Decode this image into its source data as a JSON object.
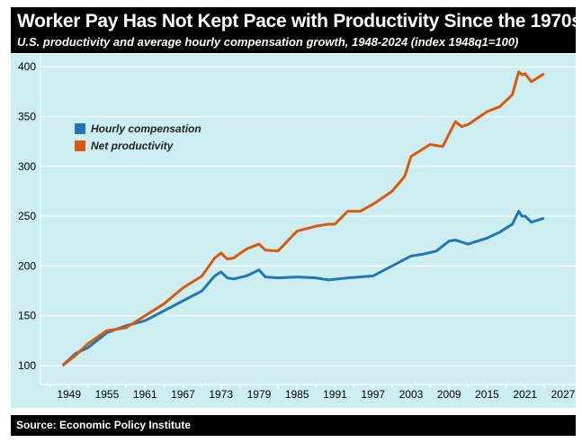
{
  "header": {
    "title": "Worker Pay Has Not Kept Pace with Productivity Since the 1970s",
    "subtitle": "U.S. productivity and average hourly compensation growth, 1948-2024 (index 1948q1=100)"
  },
  "footer": {
    "source": "Source: Economic Policy Institute"
  },
  "chart_data": {
    "type": "line",
    "title": "Worker Pay Has Not Kept Pace with Productivity Since the 1970s",
    "subtitle": "U.S. productivity and average hourly compensation growth, 1948-2024 (index 1948q1=100)",
    "xlim": [
      1944.5,
      2028
    ],
    "ylim": [
      80,
      405
    ],
    "xticks": [
      1949,
      1955,
      1961,
      1967,
      1973,
      1979,
      1985,
      1991,
      1997,
      2003,
      2009,
      2015,
      2021,
      2027
    ],
    "yticks": [
      100,
      150,
      200,
      250,
      300,
      350,
      400
    ],
    "grid": "horizontal",
    "legend": "top-left",
    "series": [
      {
        "name": "Hourly compensation",
        "color": "#1f77b4",
        "x": [
          1948,
          1950,
          1952,
          1955,
          1958,
          1961,
          1964,
          1967,
          1970,
          1972,
          1973,
          1974,
          1975,
          1977,
          1979,
          1980,
          1982,
          1985,
          1988,
          1990,
          1993,
          1995,
          1997,
          2000,
          2003,
          2005,
          2007,
          2009,
          2010,
          2012,
          2015,
          2017,
          2019,
          2020,
          2020.5,
          2021,
          2022,
          2024
        ],
        "y": [
          100,
          112,
          118,
          133,
          140,
          145,
          155,
          165,
          175,
          190,
          194,
          188,
          187,
          190,
          196,
          189,
          188,
          189,
          188,
          186,
          188,
          189,
          190,
          200,
          210,
          212,
          215,
          225,
          226,
          222,
          228,
          234,
          242,
          255,
          250,
          250,
          244,
          248
        ]
      },
      {
        "name": "Net productivity",
        "color": "#d9590f",
        "x": [
          1948,
          1950,
          1952,
          1955,
          1958,
          1961,
          1964,
          1967,
          1970,
          1972,
          1973,
          1974,
          1975,
          1977,
          1979,
          1980,
          1982,
          1985,
          1988,
          1990,
          1991,
          1993,
          1995,
          1997,
          2000,
          2002,
          2003,
          2006,
          2008,
          2010,
          2011,
          2012,
          2015,
          2017,
          2019,
          2020,
          2020.5,
          2021,
          2022,
          2024
        ],
        "y": [
          100,
          110,
          122,
          135,
          138,
          150,
          162,
          178,
          190,
          208,
          213,
          207,
          208,
          217,
          222,
          216,
          215,
          235,
          240,
          242,
          242,
          255,
          255,
          262,
          275,
          290,
          310,
          322,
          320,
          345,
          340,
          342,
          355,
          360,
          372,
          395,
          392,
          393,
          385,
          393
        ]
      }
    ]
  }
}
